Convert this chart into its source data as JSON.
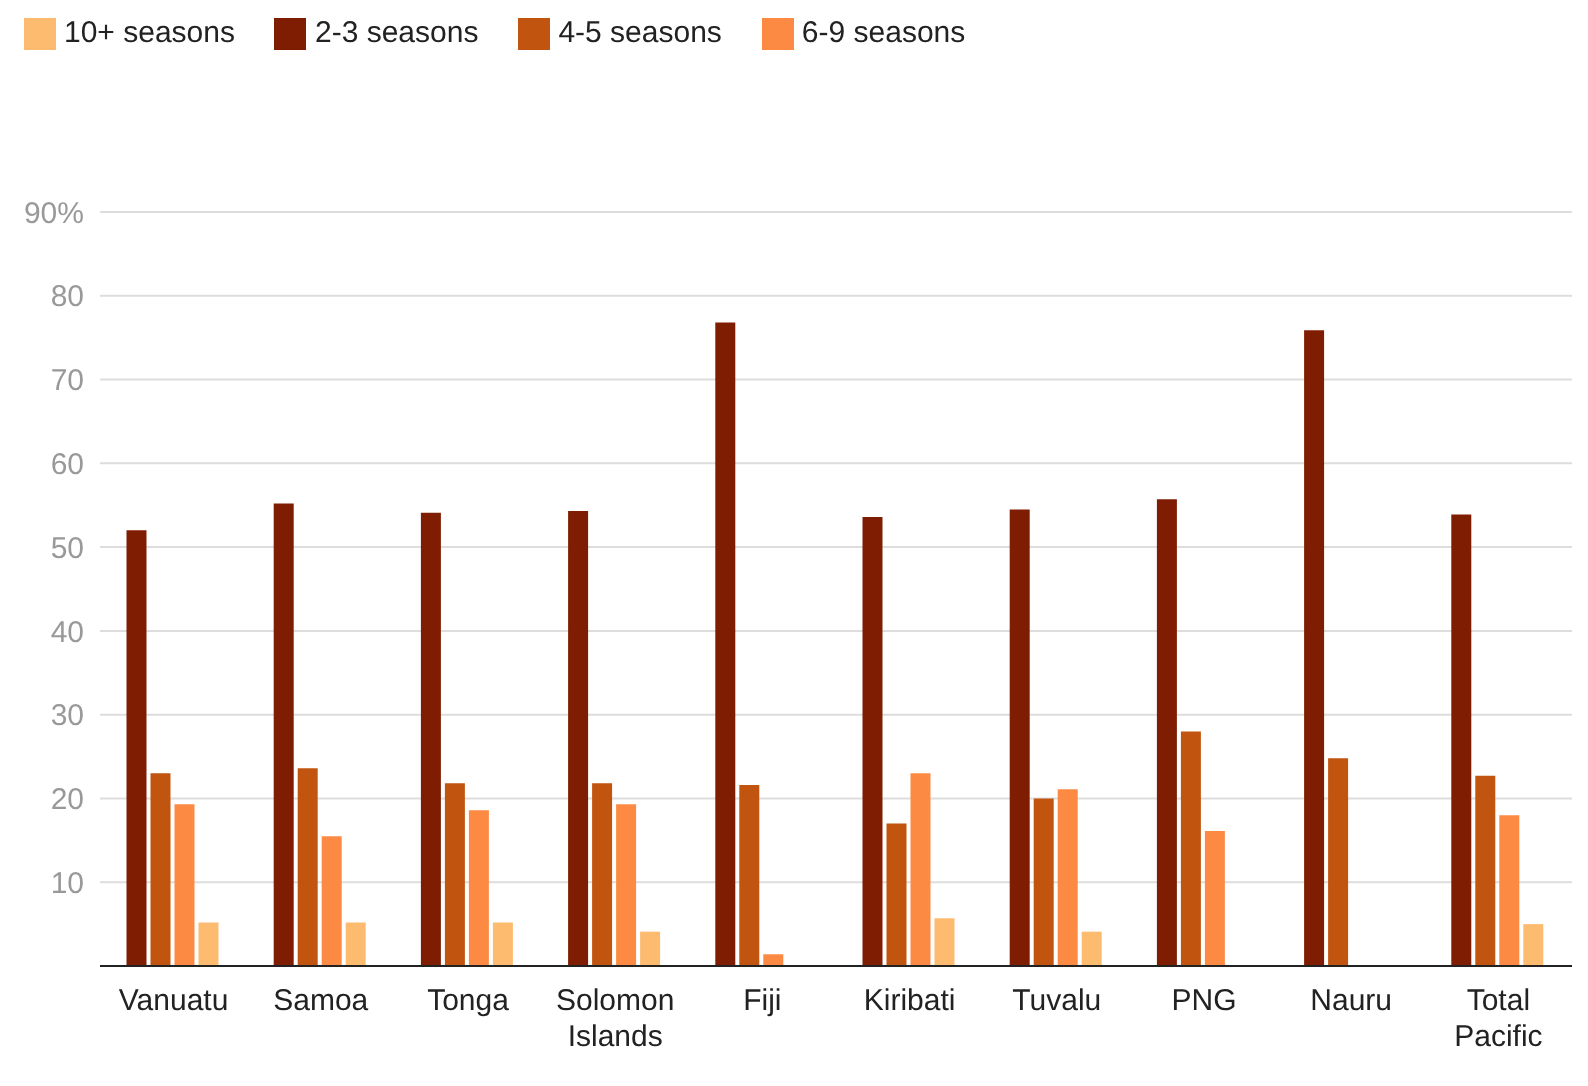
{
  "chart_data": {
    "type": "bar",
    "categories": [
      "Vanuatu",
      "Samoa",
      "Tonga",
      "Solomon Islands",
      "Fiji",
      "Kiribati",
      "Tuvalu",
      "PNG",
      "Nauru",
      "Total Pacific"
    ],
    "series": [
      {
        "name": "2-3 seasons",
        "color": "#7f1d02",
        "values": [
          52.0,
          55.2,
          54.1,
          54.3,
          76.8,
          53.6,
          54.5,
          55.7,
          75.9,
          53.9
        ]
      },
      {
        "name": "4-5 seasons",
        "color": "#c1550f",
        "values": [
          23.0,
          23.6,
          21.8,
          21.8,
          21.6,
          17.0,
          20.0,
          28.0,
          24.8,
          22.7
        ]
      },
      {
        "name": "6-9 seasons",
        "color": "#fd8a43",
        "values": [
          19.3,
          15.5,
          18.6,
          19.3,
          1.4,
          23.0,
          21.1,
          16.1,
          null,
          18.0
        ]
      },
      {
        "name": "10+ seasons",
        "color": "#fdbb70",
        "values": [
          5.2,
          5.2,
          5.2,
          4.1,
          null,
          5.7,
          4.1,
          null,
          null,
          5.0
        ]
      }
    ],
    "ylim": [
      0,
      90
    ],
    "yticks": [
      {
        "value": 0,
        "label": null
      },
      10,
      20,
      30,
      40,
      50,
      60,
      70,
      80,
      {
        "value": 90,
        "label": "90%"
      }
    ],
    "grid": "y",
    "legend": "top left"
  }
}
